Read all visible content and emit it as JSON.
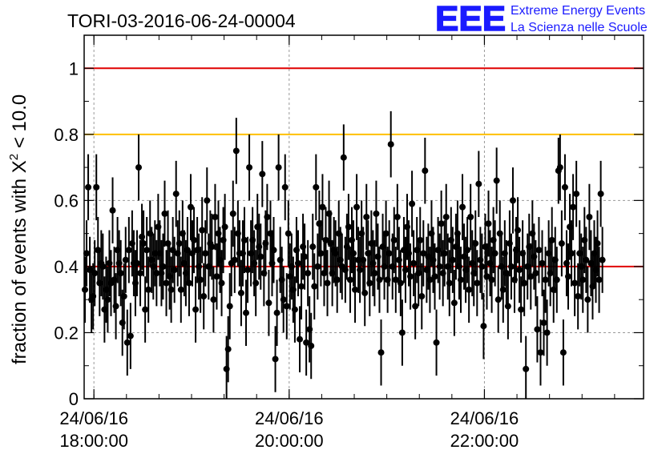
{
  "header": {
    "title": "TORI-03-2016-06-24-00004",
    "logo_text": "EEE",
    "brand_line1": "Extreme Energy Events",
    "brand_line2": "La Scienza nelle Scuole",
    "brand_color": "#1a1aff"
  },
  "chart_data": {
    "type": "scatter",
    "ylabel": "fraction of events with",
    "ylabel_symbol": "X",
    "ylabel_sup": "2",
    "ylabel_tail": " < 10.0",
    "ylim": [
      0,
      1.1
    ],
    "yticks": [
      "0",
      "0.2",
      "0.4",
      "0.6",
      "0.8",
      "1"
    ],
    "xlim_hours": [
      17.9,
      23.63
    ],
    "xticks": [
      {
        "date": "24/06/16",
        "time": "18:00:00"
      },
      {
        "date": "24/06/16",
        "time": "20:00:00"
      },
      {
        "date": "24/06/16",
        "time": "22:00:00"
      }
    ],
    "grid": true,
    "reference_lines": [
      {
        "y": 1.0,
        "color": "#e00000"
      },
      {
        "y": 0.8,
        "color": "#ffc000"
      },
      {
        "y": 0.4,
        "color": "#e00000"
      }
    ],
    "series_color": "#000000",
    "error_bar": 0.1,
    "sample_interval_min": 1,
    "points": [
      0.33,
      0.44,
      0.64,
      0.39,
      0.3,
      0.31,
      0.38,
      0.64,
      0.45,
      0.35,
      0.41,
      0.4,
      0.27,
      0.33,
      0.3,
      0.41,
      0.35,
      0.57,
      0.36,
      0.28,
      0.45,
      0.41,
      0.38,
      0.23,
      0.31,
      0.42,
      0.17,
      0.45,
      0.19,
      0.47,
      0.41,
      0.35,
      0.41,
      0.7,
      0.38,
      0.49,
      0.47,
      0.27,
      0.45,
      0.33,
      0.5,
      0.42,
      0.4,
      0.44,
      0.38,
      0.52,
      0.44,
      0.38,
      0.4,
      0.56,
      0.35,
      0.47,
      0.37,
      0.33,
      0.45,
      0.39,
      0.62,
      0.44,
      0.47,
      0.33,
      0.5,
      0.41,
      0.38,
      0.45,
      0.35,
      0.58,
      0.44,
      0.48,
      0.27,
      0.45,
      0.4,
      0.36,
      0.51,
      0.31,
      0.44,
      0.6,
      0.4,
      0.47,
      0.46,
      0.3,
      0.55,
      0.37,
      0.5,
      0.42,
      0.35,
      0.48,
      0.52,
      0.09,
      0.15,
      0.28,
      0.41,
      0.56,
      0.42,
      0.75,
      0.5,
      0.44,
      0.32,
      0.44,
      0.48,
      0.26,
      0.39,
      0.7,
      0.44,
      0.48,
      0.41,
      0.35,
      0.52,
      0.46,
      0.43,
      0.68,
      0.38,
      0.47,
      0.55,
      0.29,
      0.5,
      0.41,
      0.45,
      0.12,
      0.26,
      0.7,
      0.42,
      0.36,
      0.3,
      0.64,
      0.28,
      0.5,
      0.37,
      0.4,
      0.33,
      0.27,
      0.45,
      0.41,
      0.18,
      0.34,
      0.46,
      0.43,
      0.17,
      0.38,
      0.21,
      0.16,
      0.46,
      0.34,
      0.64,
      0.4,
      0.53,
      0.44,
      0.58,
      0.38,
      0.48,
      0.35,
      0.56,
      0.47,
      0.38,
      0.45,
      0.44,
      0.36,
      0.5,
      0.42,
      0.4,
      0.73,
      0.39,
      0.46,
      0.52,
      0.36,
      0.48,
      0.44,
      0.33,
      0.58,
      0.42,
      0.39,
      0.5,
      0.42,
      0.32,
      0.55,
      0.44,
      0.35,
      0.47,
      0.41,
      0.38,
      0.56,
      0.43,
      0.36,
      0.14,
      0.46,
      0.4,
      0.5,
      0.36,
      0.44,
      0.77,
      0.4,
      0.48,
      0.36,
      0.55,
      0.42,
      0.35,
      0.2,
      0.45,
      0.39,
      0.52,
      0.44,
      0.37,
      0.59,
      0.41,
      0.28,
      0.45,
      0.38,
      0.48,
      0.31,
      0.44,
      0.69,
      0.39,
      0.43,
      0.36,
      0.5,
      0.42,
      0.37,
      0.17,
      0.45,
      0.4,
      0.53,
      0.38,
      0.44,
      0.55,
      0.4,
      0.35,
      0.48,
      0.42,
      0.29,
      0.46,
      0.5,
      0.4,
      0.36,
      0.58,
      0.43,
      0.39,
      0.45,
      0.33,
      0.55,
      0.41,
      0.38,
      0.47,
      0.35,
      0.65,
      0.42,
      0.4,
      0.22,
      0.46,
      0.37,
      0.53,
      0.41,
      0.36,
      0.48,
      0.44,
      0.66,
      0.3,
      0.5,
      0.4,
      0.33,
      0.44,
      0.38,
      0.28,
      0.47,
      0.4,
      0.6,
      0.36,
      0.45,
      0.51,
      0.39,
      0.27,
      0.44,
      0.35,
      0.09,
      0.4,
      0.46,
      0.37,
      0.5,
      0.43,
      0.38,
      0.21,
      0.45,
      0.14,
      0.41,
      0.23,
      0.36,
      0.2,
      0.44,
      0.38,
      0.48,
      0.33,
      0.42,
      0.36,
      0.69,
      0.7,
      0.47,
      0.14,
      0.64,
      0.41,
      0.37,
      0.52,
      0.44,
      0.58,
      0.35,
      0.62,
      0.31,
      0.44,
      0.4,
      0.36,
      0.48,
      0.42,
      0.3,
      0.55,
      0.41,
      0.34,
      0.44,
      0.39,
      0.47,
      0.36,
      0.62,
      0.42
    ]
  }
}
